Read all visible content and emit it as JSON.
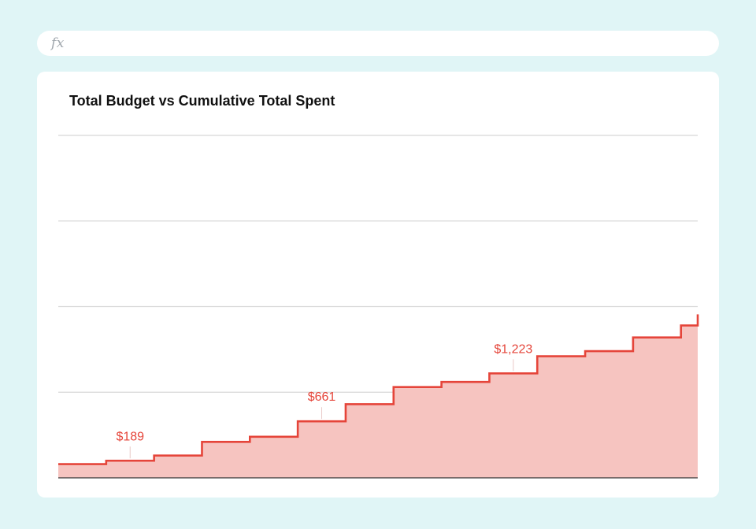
{
  "formula_bar": {
    "icon": "fx-icon",
    "label": "fx"
  },
  "chart_data": {
    "type": "area",
    "title": "Total Budget vs Cumulative Total Spent",
    "xlabel": "",
    "ylabel": "",
    "ylim": [
      0,
      2000
    ],
    "grid": true,
    "step": true,
    "series": [
      {
        "color": "#e5453a",
        "fill": "#f6c4c0",
        "values": [
          80,
          100,
          130,
          210,
          240,
          330,
          430,
          530,
          560,
          610,
          710,
          740,
          820,
          890
        ]
      }
    ],
    "annotations": [
      {
        "index": 1,
        "label": "$189"
      },
      {
        "index": 5,
        "label": "$661"
      },
      {
        "index": 9,
        "label": "$1,223"
      }
    ]
  }
}
